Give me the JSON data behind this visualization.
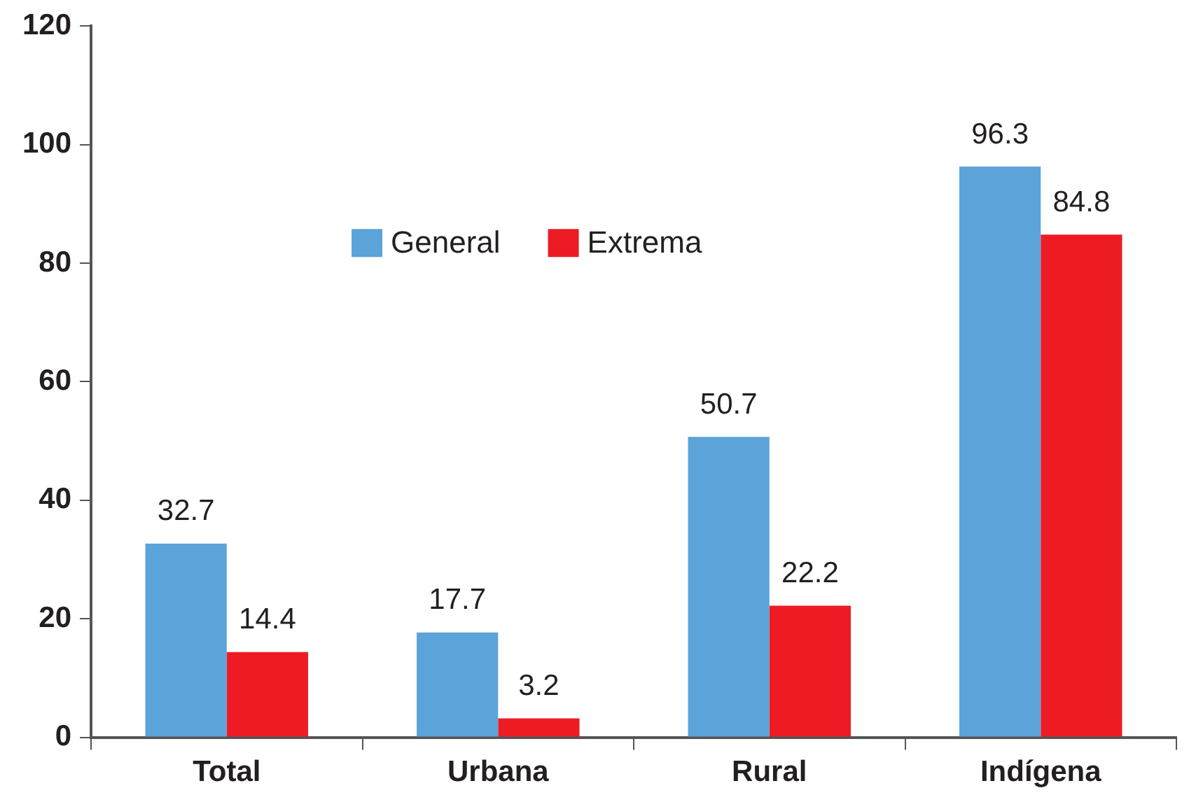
{
  "chart_data": {
    "type": "bar",
    "categories": [
      "Total",
      "Urbana",
      "Rural",
      "Indígena"
    ],
    "series": [
      {
        "name": "General",
        "color": "#5ba3d9",
        "values": [
          32.7,
          17.7,
          50.7,
          96.3
        ]
      },
      {
        "name": "Extrema",
        "color": "#ed1c24",
        "values": [
          14.4,
          3.2,
          22.2,
          84.8
        ]
      }
    ],
    "ylim": [
      0,
      120
    ],
    "yticks": [
      0,
      20,
      40,
      60,
      80,
      100,
      120
    ],
    "grid": false,
    "legend": "top",
    "data_labels": true
  }
}
